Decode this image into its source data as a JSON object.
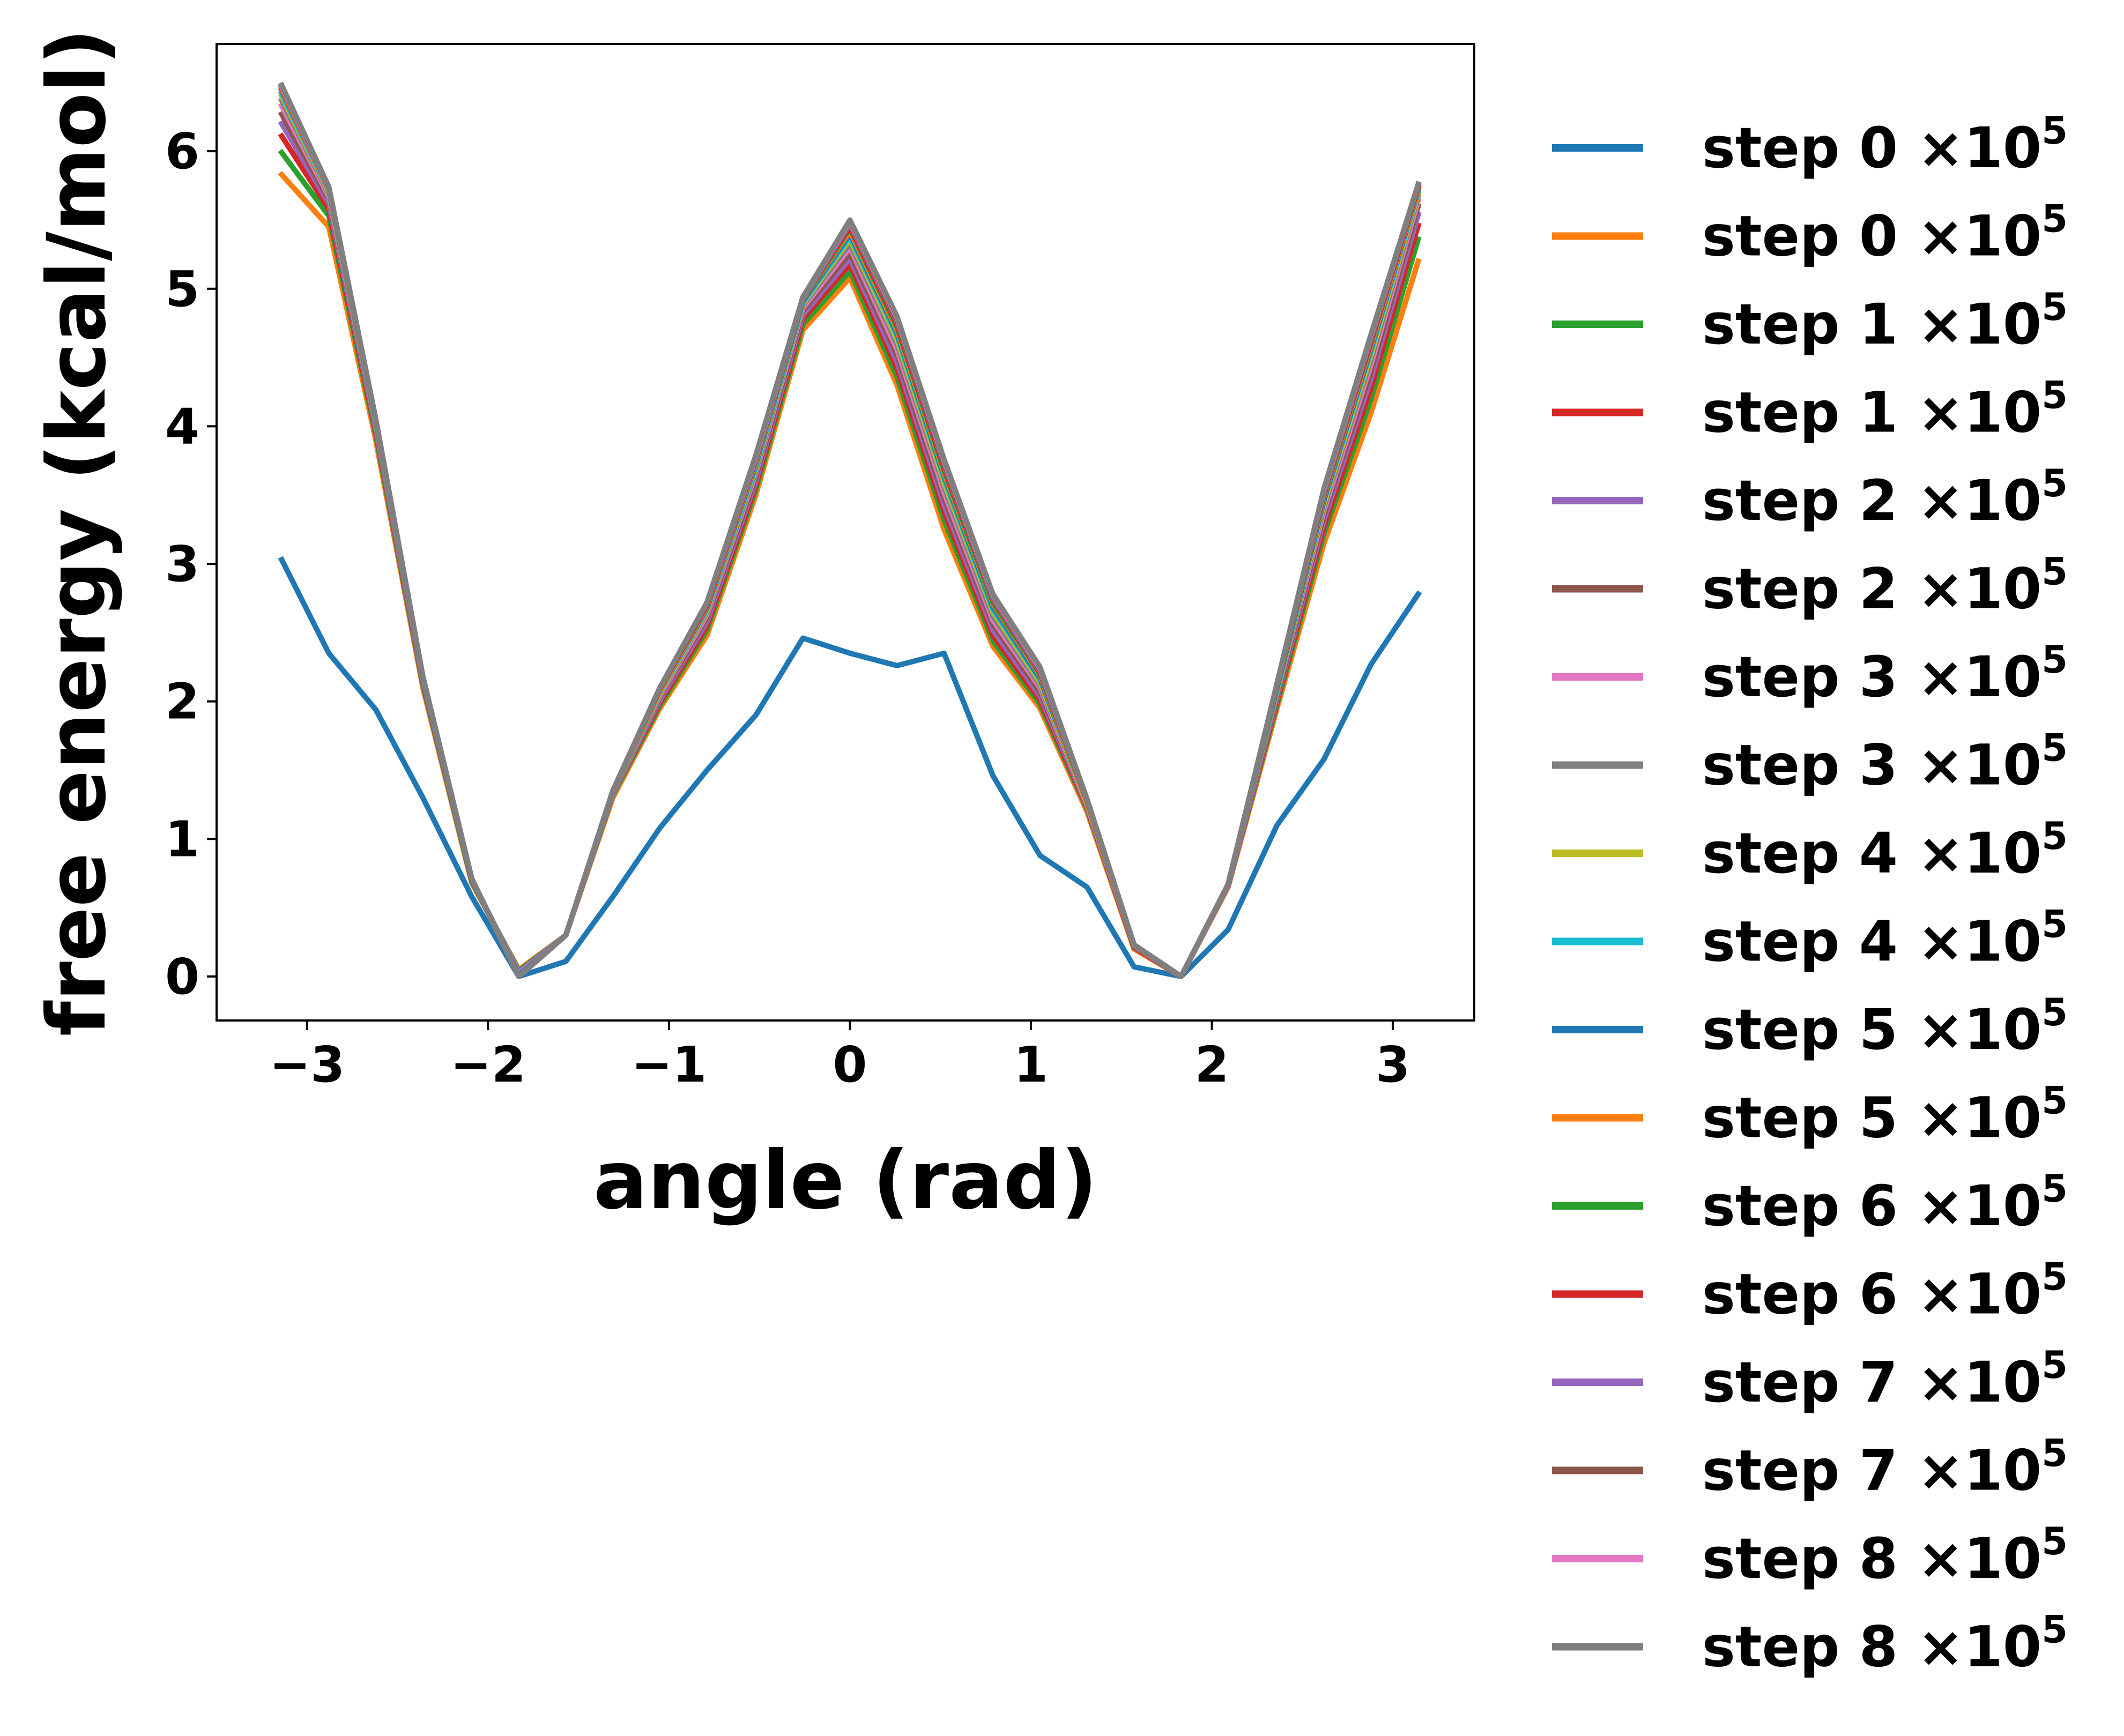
{
  "colors": {
    "palette": [
      "#1f77b4",
      "#ff7f0e",
      "#2ca02c",
      "#d62728",
      "#9467bd",
      "#8c564b",
      "#e377c2",
      "#7f7f7f",
      "#bcbd22",
      "#17becf"
    ],
    "axis": "#000000",
    "background": "#ffffff"
  },
  "chart_data": {
    "type": "line",
    "xlabel": "angle (rad)",
    "ylabel": "free energy (kcal/mol)",
    "xlim": [
      -3.5,
      3.45
    ],
    "ylim": [
      -0.32,
      6.78
    ],
    "xticks": [
      -3,
      -2,
      -1,
      0,
      1,
      2,
      3
    ],
    "xtick_labels": [
      "−3",
      "−2",
      "−1",
      "0",
      "1",
      "2",
      "3"
    ],
    "yticks": [
      0,
      1,
      2,
      3,
      4,
      5,
      6
    ],
    "ytick_labels": [
      "0",
      "1",
      "2",
      "3",
      "4",
      "5",
      "6"
    ],
    "grid": false,
    "legend_placement": "outside-right",
    "x": [
      -3.14,
      -2.88,
      -2.62,
      -2.36,
      -2.09,
      -1.83,
      -1.57,
      -1.31,
      -1.05,
      -0.79,
      -0.52,
      -0.26,
      0.0,
      0.26,
      0.52,
      0.79,
      1.05,
      1.31,
      1.57,
      1.83,
      2.09,
      2.36,
      2.62,
      2.88,
      3.14
    ],
    "series": [
      {
        "name": "step 0 ×10",
        "exponent": "5",
        "values": [
          3.03,
          2.35,
          1.94,
          1.3,
          0.58,
          0.0,
          0.11,
          0.58,
          1.08,
          1.5,
          1.9,
          2.46,
          2.35,
          2.26,
          2.35,
          1.46,
          0.88,
          0.65,
          0.07,
          0.0,
          0.34,
          1.1,
          1.58,
          2.27,
          2.78
        ]
      },
      {
        "name": "step 0 ×10",
        "exponent": "5",
        "values": [
          5.83,
          5.45,
          3.9,
          2.1,
          0.68,
          0.05,
          0.3,
          1.3,
          1.95,
          2.48,
          3.5,
          4.7,
          5.08,
          4.3,
          3.25,
          2.4,
          1.95,
          1.2,
          0.2,
          0.0,
          0.65,
          1.95,
          3.15,
          4.1,
          5.2
        ]
      },
      {
        "name": "step 1 ×10",
        "exponent": "5",
        "values": [
          5.99,
          5.53,
          3.94,
          2.12,
          0.69,
          0.04,
          0.3,
          1.32,
          1.97,
          2.52,
          3.54,
          4.74,
          5.13,
          4.36,
          3.32,
          2.44,
          1.98,
          1.22,
          0.21,
          0.0,
          0.66,
          1.98,
          3.22,
          4.2,
          5.36
        ]
      },
      {
        "name": "step 1 ×10",
        "exponent": "5",
        "values": [
          6.11,
          5.58,
          3.96,
          2.13,
          0.7,
          0.03,
          0.3,
          1.33,
          1.99,
          2.55,
          3.57,
          4.78,
          5.18,
          4.42,
          3.38,
          2.48,
          2.01,
          1.23,
          0.21,
          0.0,
          0.66,
          2.0,
          3.27,
          4.28,
          5.46
        ]
      },
      {
        "name": "step 2 ×10",
        "exponent": "5",
        "values": [
          6.2,
          5.62,
          3.98,
          2.14,
          0.7,
          0.03,
          0.3,
          1.33,
          2.01,
          2.58,
          3.6,
          4.81,
          5.22,
          4.47,
          3.43,
          2.52,
          2.04,
          1.24,
          0.22,
          0.0,
          0.66,
          2.02,
          3.32,
          4.35,
          5.54
        ]
      },
      {
        "name": "step 2 ×10",
        "exponent": "5",
        "values": [
          6.27,
          5.65,
          4.0,
          2.15,
          0.7,
          0.02,
          0.3,
          1.34,
          2.03,
          2.61,
          3.63,
          4.84,
          5.26,
          4.52,
          3.48,
          2.56,
          2.07,
          1.25,
          0.22,
          0.0,
          0.67,
          2.04,
          3.36,
          4.4,
          5.6
        ]
      },
      {
        "name": "step 3 ×10",
        "exponent": "5",
        "values": [
          6.33,
          5.67,
          4.01,
          2.16,
          0.71,
          0.02,
          0.3,
          1.34,
          2.04,
          2.63,
          3.66,
          4.86,
          5.3,
          4.56,
          3.52,
          2.59,
          2.1,
          1.25,
          0.22,
          0.0,
          0.67,
          2.06,
          3.39,
          4.45,
          5.64
        ]
      },
      {
        "name": "step 3 ×10",
        "exponent": "5",
        "values": [
          6.37,
          5.69,
          4.02,
          2.16,
          0.71,
          0.01,
          0.3,
          1.34,
          2.05,
          2.65,
          3.68,
          4.88,
          5.33,
          4.6,
          3.56,
          2.62,
          2.12,
          1.26,
          0.22,
          0.0,
          0.67,
          2.07,
          3.42,
          4.49,
          5.67
        ]
      },
      {
        "name": "step 4 ×10",
        "exponent": "5",
        "values": [
          6.4,
          5.7,
          4.03,
          2.17,
          0.71,
          0.01,
          0.3,
          1.35,
          2.06,
          2.66,
          3.7,
          4.89,
          5.36,
          4.63,
          3.59,
          2.65,
          2.14,
          1.26,
          0.23,
          0.0,
          0.67,
          2.08,
          3.44,
          4.52,
          5.69
        ]
      },
      {
        "name": "step 4 ×10",
        "exponent": "5",
        "values": [
          6.42,
          5.71,
          4.03,
          2.17,
          0.71,
          0.01,
          0.3,
          1.35,
          2.07,
          2.67,
          3.71,
          4.9,
          5.38,
          4.66,
          3.62,
          2.67,
          2.16,
          1.27,
          0.23,
          0.0,
          0.67,
          2.09,
          3.46,
          4.55,
          5.71
        ]
      },
      {
        "name": "step 5 ×10",
        "exponent": "5",
        "values": [
          6.44,
          5.72,
          4.04,
          2.17,
          0.71,
          0.01,
          0.3,
          1.35,
          2.08,
          2.68,
          3.73,
          4.91,
          5.4,
          4.68,
          3.64,
          2.69,
          2.17,
          1.27,
          0.23,
          0.0,
          0.67,
          2.1,
          3.47,
          4.57,
          5.72
        ]
      },
      {
        "name": "step 5 ×10",
        "exponent": "5",
        "values": [
          6.45,
          5.72,
          4.04,
          2.18,
          0.71,
          0.0,
          0.3,
          1.35,
          2.08,
          2.69,
          3.74,
          4.92,
          5.42,
          4.7,
          3.66,
          2.71,
          2.19,
          1.27,
          0.23,
          0.0,
          0.67,
          2.11,
          3.49,
          4.59,
          5.73
        ]
      },
      {
        "name": "step 6 ×10",
        "exponent": "5",
        "values": [
          6.46,
          5.73,
          4.04,
          2.18,
          0.71,
          0.0,
          0.3,
          1.35,
          2.09,
          2.7,
          3.75,
          4.92,
          5.44,
          4.72,
          3.68,
          2.72,
          2.2,
          1.28,
          0.23,
          0.0,
          0.67,
          2.11,
          3.5,
          4.61,
          5.74
        ]
      },
      {
        "name": "step 6 ×10",
        "exponent": "5",
        "values": [
          6.46,
          5.73,
          4.05,
          2.18,
          0.71,
          0.0,
          0.3,
          1.35,
          2.09,
          2.7,
          3.76,
          4.93,
          5.45,
          4.74,
          3.7,
          2.74,
          2.21,
          1.28,
          0.23,
          0.0,
          0.67,
          2.12,
          3.51,
          4.62,
          5.74
        ]
      },
      {
        "name": "step 7 ×10",
        "exponent": "5",
        "values": [
          6.47,
          5.73,
          4.05,
          2.18,
          0.71,
          0.0,
          0.3,
          1.35,
          2.1,
          2.71,
          3.77,
          4.93,
          5.47,
          4.76,
          3.72,
          2.75,
          2.22,
          1.28,
          0.23,
          0.0,
          0.67,
          2.12,
          3.52,
          4.64,
          5.75
        ]
      },
      {
        "name": "step 7 ×10",
        "exponent": "5",
        "values": [
          6.47,
          5.74,
          4.05,
          2.18,
          0.71,
          0.0,
          0.3,
          1.35,
          2.1,
          2.71,
          3.78,
          4.94,
          5.48,
          4.77,
          3.73,
          2.76,
          2.23,
          1.28,
          0.23,
          0.0,
          0.67,
          2.12,
          3.53,
          4.65,
          5.75
        ]
      },
      {
        "name": "step 8 ×10",
        "exponent": "5",
        "values": [
          6.47,
          5.74,
          4.05,
          2.18,
          0.71,
          0.0,
          0.3,
          1.35,
          2.1,
          2.72,
          3.78,
          4.94,
          5.49,
          4.79,
          3.75,
          2.77,
          2.24,
          1.29,
          0.23,
          0.0,
          0.67,
          2.13,
          3.54,
          4.66,
          5.76
        ]
      },
      {
        "name": "step 8 ×10",
        "exponent": "5",
        "values": [
          6.48,
          5.74,
          4.05,
          2.18,
          0.71,
          0.0,
          0.3,
          1.35,
          2.1,
          2.72,
          3.79,
          4.94,
          5.5,
          4.8,
          3.76,
          2.78,
          2.25,
          1.29,
          0.23,
          0.0,
          0.67,
          2.13,
          3.55,
          4.67,
          5.76
        ]
      }
    ]
  }
}
